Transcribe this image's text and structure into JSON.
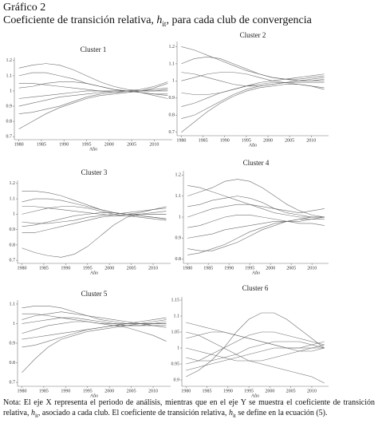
{
  "header": {
    "title": "Gráfico 2",
    "subtitle": [
      "Coeficiente de transición relativa, ",
      "h",
      "it",
      ", para cada club de convergencia"
    ]
  },
  "note": [
    "Nota: El eje X representa el periodo de análisis, mientras que en el eje Y se muestra el coeficiente de transición relativa, ",
    "h",
    "it",
    ", asociado a cada club. El coeficiente de transición relativa, ",
    "h",
    "it",
    " se define en la ecuación (5)."
  ],
  "chart_data": [
    {
      "type": "line",
      "title": "Cluster 1",
      "x_label": "Año",
      "color": "#555555",
      "x": [
        1980,
        1983,
        1986,
        1989,
        1992,
        1995,
        1998,
        2001,
        2004,
        2007,
        2010,
        2013
      ],
      "xlim": [
        1979,
        2014
      ],
      "xticks": [
        1980,
        1985,
        1990,
        1995,
        2000,
        2005,
        2010
      ],
      "ylim": [
        0.68,
        1.22
      ],
      "yticks": [
        0.7,
        0.8,
        0.9,
        1,
        1.1,
        1.2
      ],
      "series": [
        {
          "values": [
            1.15,
            1.17,
            1.18,
            1.17,
            1.14,
            1.1,
            1.06,
            1.03,
            1.01,
            1.0,
            1.0,
            1.0
          ]
        },
        {
          "values": [
            0.75,
            0.8,
            0.85,
            0.89,
            0.92,
            0.95,
            0.97,
            0.98,
            0.99,
            1.0,
            1.0,
            1.01
          ]
        },
        {
          "values": [
            1.1,
            1.12,
            1.12,
            1.1,
            1.08,
            1.05,
            1.03,
            1.01,
            1.0,
            0.99,
            0.98,
            0.97
          ]
        },
        {
          "values": [
            0.9,
            0.92,
            0.94,
            0.96,
            0.97,
            0.98,
            0.99,
            1.0,
            1.0,
            1.0,
            1.01,
            1.02
          ]
        },
        {
          "values": [
            1.05,
            1.05,
            1.04,
            1.03,
            1.02,
            1.01,
            1.0,
            0.99,
            0.99,
            1.0,
            1.02,
            1.05
          ]
        },
        {
          "values": [
            0.95,
            0.96,
            0.97,
            0.98,
            0.99,
            1.0,
            1.0,
            1.0,
            1.0,
            0.99,
            0.97,
            0.95
          ]
        },
        {
          "values": [
            1.02,
            1.03,
            1.05,
            1.06,
            1.06,
            1.05,
            1.03,
            1.01,
            1.0,
            0.99,
            0.98,
            0.98
          ]
        },
        {
          "values": [
            0.85,
            0.86,
            0.88,
            0.9,
            0.93,
            0.96,
            0.98,
            0.99,
            1.0,
            1.01,
            1.03,
            1.06
          ]
        }
      ]
    },
    {
      "type": "line",
      "title": "Cluster 2",
      "x_label": "Año",
      "color": "#555555",
      "x": [
        1980,
        1983,
        1986,
        1989,
        1992,
        1995,
        1998,
        2001,
        2004,
        2007,
        2010,
        2013
      ],
      "xlim": [
        1979,
        2014
      ],
      "xticks": [
        1980,
        1985,
        1990,
        1995,
        2000,
        2005,
        2010
      ],
      "ylim": [
        0.68,
        1.23
      ],
      "yticks": [
        0.7,
        0.8,
        0.9,
        1,
        1.1,
        1.2
      ],
      "series": [
        {
          "values": [
            1.2,
            1.18,
            1.15,
            1.12,
            1.09,
            1.06,
            1.04,
            1.02,
            1.01,
            1.01,
            1.02,
            1.03
          ]
        },
        {
          "values": [
            0.7,
            0.76,
            0.82,
            0.87,
            0.91,
            0.94,
            0.96,
            0.97,
            0.98,
            0.98,
            0.97,
            0.96
          ]
        },
        {
          "values": [
            1.1,
            1.13,
            1.14,
            1.13,
            1.1,
            1.07,
            1.04,
            1.02,
            1.01,
            1.0,
            1.0,
            1.0
          ]
        },
        {
          "values": [
            0.85,
            0.87,
            0.9,
            0.93,
            0.95,
            0.97,
            0.98,
            0.99,
            0.99,
            1.0,
            1.0,
            1.01
          ]
        },
        {
          "values": [
            1.0,
            1.02,
            1.04,
            1.05,
            1.05,
            1.04,
            1.02,
            1.0,
            0.99,
            0.98,
            0.97,
            0.95
          ]
        },
        {
          "values": [
            0.93,
            0.92,
            0.92,
            0.93,
            0.95,
            0.97,
            0.99,
            1.0,
            1.01,
            1.02,
            1.03,
            1.04
          ]
        },
        {
          "values": [
            1.05,
            1.04,
            1.02,
            1.0,
            0.98,
            0.97,
            0.97,
            0.98,
            0.99,
            1.0,
            1.01,
            1.02
          ]
        },
        {
          "values": [
            0.78,
            0.8,
            0.84,
            0.88,
            0.92,
            0.95,
            0.97,
            0.98,
            0.99,
            0.99,
            0.99,
            0.99
          ]
        }
      ]
    },
    {
      "type": "line",
      "title": "Cluster 3",
      "x_label": "Año",
      "color": "#555555",
      "x": [
        1980,
        1983,
        1986,
        1989,
        1992,
        1995,
        1998,
        2001,
        2004,
        2007,
        2010,
        2013
      ],
      "xlim": [
        1979,
        2014
      ],
      "xticks": [
        1980,
        1985,
        1990,
        1995,
        2000,
        2005,
        2010
      ],
      "ylim": [
        0.68,
        1.22
      ],
      "yticks": [
        0.7,
        0.8,
        0.9,
        1,
        1.1,
        1.2
      ],
      "series": [
        {
          "values": [
            1.15,
            1.15,
            1.14,
            1.12,
            1.09,
            1.06,
            1.03,
            1.01,
            1.0,
            1.01,
            1.03,
            1.05
          ]
        },
        {
          "values": [
            0.78,
            0.75,
            0.73,
            0.72,
            0.74,
            0.79,
            0.86,
            0.93,
            0.98,
            1.0,
            1.0,
            1.0
          ]
        },
        {
          "values": [
            1.08,
            1.1,
            1.1,
            1.09,
            1.07,
            1.05,
            1.03,
            1.01,
            1.0,
            0.99,
            0.98,
            0.97
          ]
        },
        {
          "values": [
            0.88,
            0.88,
            0.9,
            0.92,
            0.94,
            0.96,
            0.98,
            0.99,
            1.0,
            1.0,
            1.0,
            1.0
          ]
        },
        {
          "values": [
            1.0,
            1.02,
            1.04,
            1.05,
            1.05,
            1.04,
            1.02,
            1.0,
            0.99,
            0.98,
            0.97,
            0.96
          ]
        },
        {
          "values": [
            0.95,
            0.94,
            0.94,
            0.95,
            0.96,
            0.98,
            0.99,
            1.0,
            1.01,
            1.02,
            1.03,
            1.04
          ]
        },
        {
          "values": [
            1.05,
            1.05,
            1.04,
            1.03,
            1.02,
            1.01,
            1.0,
            0.99,
            0.99,
            1.0,
            1.01,
            1.02
          ]
        },
        {
          "values": [
            0.92,
            0.93,
            0.95,
            0.97,
            0.99,
            1.0,
            1.01,
            1.01,
            1.0,
            0.99,
            0.98,
            0.97
          ]
        }
      ]
    },
    {
      "type": "line",
      "title": "Cluster 4",
      "x_label": "Año",
      "color": "#555555",
      "x": [
        1980,
        1983,
        1986,
        1989,
        1992,
        1995,
        1998,
        2001,
        2004,
        2007,
        2010,
        2013
      ],
      "xlim": [
        1979,
        2014
      ],
      "xticks": [
        1980,
        1985,
        1990,
        1995,
        2000,
        2005,
        2010
      ],
      "ylim": [
        0.78,
        1.22
      ],
      "yticks": [
        0.8,
        0.9,
        1,
        1.1,
        1.2
      ],
      "series": [
        {
          "values": [
            1.1,
            1.12,
            1.14,
            1.17,
            1.18,
            1.17,
            1.14,
            1.1,
            1.06,
            1.03,
            1.01,
            1.0
          ]
        },
        {
          "values": [
            0.85,
            0.84,
            0.84,
            0.86,
            0.88,
            0.91,
            0.94,
            0.96,
            0.98,
            0.99,
            1.0,
            1.0
          ]
        },
        {
          "values": [
            1.05,
            1.06,
            1.08,
            1.09,
            1.1,
            1.09,
            1.07,
            1.04,
            1.02,
            1.01,
            1.0,
            1.0
          ]
        },
        {
          "values": [
            0.95,
            0.96,
            0.98,
            1.0,
            1.01,
            1.01,
            1.0,
            0.99,
            0.98,
            0.98,
            0.99,
            1.0
          ]
        },
        {
          "values": [
            1.15,
            1.14,
            1.12,
            1.1,
            1.08,
            1.06,
            1.04,
            1.02,
            1.01,
            1.0,
            1.0,
            1.0
          ]
        },
        {
          "values": [
            0.9,
            0.91,
            0.92,
            0.94,
            0.95,
            0.96,
            0.97,
            0.98,
            0.98,
            0.97,
            0.97,
            0.96
          ]
        },
        {
          "values": [
            1.0,
            1.02,
            1.04,
            1.05,
            1.06,
            1.06,
            1.05,
            1.04,
            1.03,
            1.02,
            1.03,
            1.04
          ]
        },
        {
          "values": [
            0.82,
            0.83,
            0.85,
            0.87,
            0.9,
            0.93,
            0.95,
            0.97,
            0.98,
            0.99,
            0.99,
            0.99
          ]
        }
      ]
    },
    {
      "type": "line",
      "title": "Cluster 5",
      "x_label": "Año",
      "color": "#555555",
      "x": [
        1980,
        1983,
        1986,
        1989,
        1992,
        1995,
        1998,
        2001,
        2004,
        2007,
        2010,
        2013
      ],
      "xlim": [
        1979,
        2014
      ],
      "xticks": [
        1980,
        1985,
        1990,
        1995,
        2000,
        2005,
        2010
      ],
      "ylim": [
        0.68,
        1.12
      ],
      "yticks": [
        0.7,
        0.8,
        0.9,
        1,
        1.1
      ],
      "series": [
        {
          "values": [
            0.75,
            0.82,
            0.88,
            0.92,
            0.94,
            0.96,
            0.97,
            0.98,
            0.99,
            1.0,
            1.0,
            1.0
          ]
        },
        {
          "values": [
            1.08,
            1.09,
            1.09,
            1.08,
            1.06,
            1.04,
            1.02,
            1.01,
            1.0,
            1.0,
            1.01,
            1.02
          ]
        },
        {
          "values": [
            0.95,
            0.97,
            0.99,
            1.0,
            1.01,
            1.01,
            1.0,
            0.99,
            0.98,
            0.96,
            0.94,
            0.91
          ]
        },
        {
          "values": [
            1.02,
            1.04,
            1.05,
            1.06,
            1.05,
            1.04,
            1.03,
            1.02,
            1.01,
            1.0,
            0.99,
            0.98
          ]
        },
        {
          "values": [
            0.88,
            0.89,
            0.91,
            0.93,
            0.95,
            0.97,
            0.98,
            0.99,
            1.0,
            1.0,
            1.0,
            1.01
          ]
        },
        {
          "values": [
            1.05,
            1.05,
            1.04,
            1.03,
            1.02,
            1.01,
            1.0,
            1.0,
            1.0,
            1.01,
            1.02,
            1.03
          ]
        },
        {
          "values": [
            0.92,
            0.93,
            0.94,
            0.95,
            0.96,
            0.97,
            0.98,
            0.99,
            0.99,
            0.99,
            0.99,
            0.99
          ]
        },
        {
          "values": [
            1.0,
            1.01,
            1.02,
            1.03,
            1.03,
            1.02,
            1.01,
            1.0,
            0.99,
            0.99,
            1.0,
            1.0
          ]
        }
      ]
    },
    {
      "type": "line",
      "title": "Cluster 6",
      "x_label": "Año",
      "color": "#555555",
      "x": [
        1980,
        1983,
        1986,
        1989,
        1992,
        1995,
        1998,
        2001,
        2004,
        2007,
        2010,
        2013
      ],
      "xlim": [
        1979,
        2014
      ],
      "xticks": [
        1980,
        1985,
        1990,
        1995,
        2000,
        2005,
        2010
      ],
      "ylim": [
        0.88,
        1.16
      ],
      "yticks": [
        0.9,
        0.95,
        1,
        1.05,
        1.1,
        1.15
      ],
      "series": [
        {
          "values": [
            1.08,
            1.07,
            1.06,
            1.05,
            1.04,
            1.03,
            1.02,
            1.01,
            1.0,
            1.0,
            1.0,
            1.0
          ]
        },
        {
          "values": [
            0.91,
            0.93,
            0.96,
            1.0,
            1.05,
            1.09,
            1.11,
            1.11,
            1.09,
            1.06,
            1.03,
            1.0
          ]
        },
        {
          "values": [
            1.05,
            1.04,
            1.02,
            1.0,
            0.98,
            0.96,
            0.95,
            0.94,
            0.93,
            0.92,
            0.91,
            0.89
          ]
        },
        {
          "values": [
            0.95,
            0.96,
            0.98,
            1.0,
            1.02,
            1.04,
            1.05,
            1.05,
            1.04,
            1.03,
            1.02,
            1.01
          ]
        },
        {
          "values": [
            1.0,
            0.99,
            0.98,
            0.97,
            0.96,
            0.96,
            0.96,
            0.97,
            0.98,
            0.99,
            1.0,
            1.01
          ]
        },
        {
          "values": [
            0.93,
            0.94,
            0.95,
            0.96,
            0.97,
            0.98,
            0.99,
            1.0,
            1.0,
            1.0,
            1.01,
            1.02
          ]
        },
        {
          "values": [
            1.03,
            1.04,
            1.05,
            1.05,
            1.04,
            1.03,
            1.02,
            1.01,
            1.0,
            0.99,
            0.99,
            1.0
          ]
        },
        {
          "values": [
            0.97,
            0.96,
            0.96,
            0.97,
            0.98,
            1.0,
            1.01,
            1.02,
            1.02,
            1.02,
            1.01,
            1.0
          ]
        }
      ]
    }
  ]
}
